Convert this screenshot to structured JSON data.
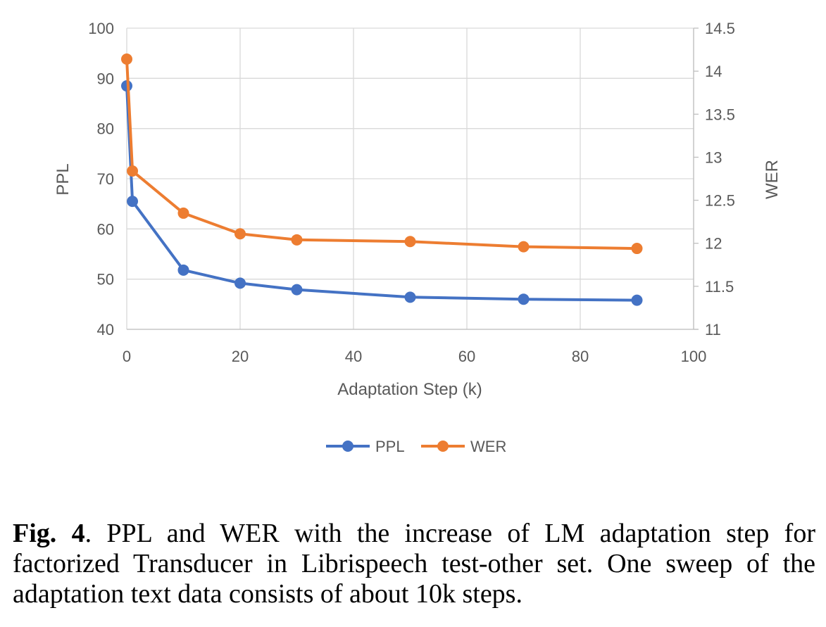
{
  "chart_data": {
    "type": "line",
    "xlabel": "Adaptation Step (k)",
    "ylabel_left": "PPL",
    "ylabel_right": "WER",
    "xlim": [
      0,
      100
    ],
    "ylim_left": [
      40,
      100
    ],
    "ylim_right": [
      11,
      14.5
    ],
    "x_ticks": [
      "0",
      "20",
      "40",
      "60",
      "80",
      "100"
    ],
    "y_ticks_left": [
      "40",
      "50",
      "60",
      "70",
      "80",
      "90",
      "100"
    ],
    "y_ticks_right": [
      "11",
      "11.5",
      "12",
      "12.5",
      "13",
      "13.5",
      "14",
      "14.5"
    ],
    "grid": true,
    "legend": "bottom",
    "series": [
      {
        "name": "PPL",
        "axis": "left",
        "color": "#4472C4",
        "x": [
          0,
          1,
          10,
          20,
          30,
          50,
          70,
          90
        ],
        "values": [
          88.5,
          65.5,
          51.8,
          49.2,
          47.9,
          46.4,
          46.0,
          45.8
        ]
      },
      {
        "name": "WER",
        "axis": "right",
        "color": "#ED7D31",
        "x": [
          0,
          1,
          10,
          20,
          30,
          50,
          70,
          90
        ],
        "values": [
          14.14,
          12.84,
          12.35,
          12.11,
          12.04,
          12.02,
          11.96,
          11.94
        ]
      }
    ]
  },
  "caption": {
    "label": "Fig. 4",
    "text": ".  PPL and WER with the increase of LM adaptation step for factorized Transducer in Librispeech test-other set.  One sweep of the adaptation text data consists of about 10k steps."
  }
}
